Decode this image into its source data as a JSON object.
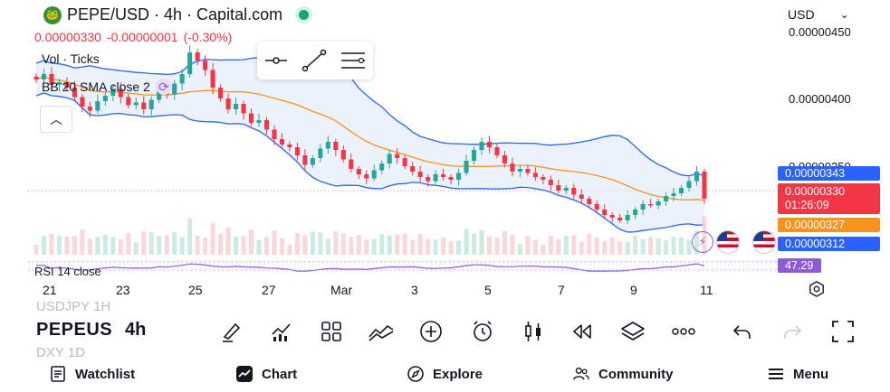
{
  "header": {
    "logo_text": "🐸",
    "title": "PEPE/USD · 4h · Capital.com"
  },
  "quote": {
    "last": "0.00000330",
    "change": "-0.00000001",
    "change_pct": "(-0.30%)"
  },
  "currency": {
    "selected": "USD"
  },
  "legend": {
    "volume": "Vol · Ticks",
    "bollinger": "BB 20 SMA close 2",
    "rsi": "RSI 14 close"
  },
  "price_axis": {
    "top_partial": "0.00000450",
    "mid": "0.00000400",
    "low_partial": "0.00000350"
  },
  "price_tags": {
    "bb_upper": "0.00000343",
    "last_price": "0.00000330",
    "countdown": "01:26:09",
    "bb_basis": "0.00000327",
    "bb_lower": "0.00000312",
    "rsi": "47.29"
  },
  "time_axis": [
    "21",
    "23",
    "25",
    "27",
    "Mar",
    "3",
    "5",
    "7",
    "9",
    "11"
  ],
  "bottom_bar": {
    "symbol": "PEPEUS",
    "timeframe": "4h",
    "ghost_above": "USDJPY  1H",
    "ghost_below": "DXY      1D"
  },
  "nav": [
    {
      "label": "Watchlist",
      "icon": "watchlist-icon"
    },
    {
      "label": "Chart",
      "icon": "chart-icon"
    },
    {
      "label": "Explore",
      "icon": "compass-icon"
    },
    {
      "label": "Community",
      "icon": "community-icon"
    },
    {
      "label": "Menu",
      "icon": "menu-icon"
    }
  ],
  "colors": {
    "up": "#26a69a",
    "down": "#f23645",
    "band": "#2962ff",
    "basis": "#f7931a",
    "rsi": "#8e5ad8"
  },
  "chart_data": {
    "type": "candlestick",
    "symbol": "PEPE/USD",
    "interval": "4h",
    "ylim": [
      2.9e-06,
      4.6e-06
    ],
    "close_series": [
      4.18e-06,
      4.22e-06,
      4.14e-06,
      4.16e-06,
      4.12e-06,
      4.05e-06,
      3.98e-06,
      3.95e-06,
      4.02e-06,
      4.06e-06,
      4.11e-06,
      4.05e-06,
      3.99e-06,
      4.01e-06,
      3.96e-06,
      4.03e-06,
      4.1e-06,
      4.07e-06,
      4.15e-06,
      4.22e-06,
      4.38e-06,
      4.32e-06,
      4.25e-06,
      4.12e-06,
      4.04e-06,
      3.96e-06,
      4e-06,
      3.93e-06,
      3.86e-06,
      3.88e-06,
      3.81e-06,
      3.74e-06,
      3.7e-06,
      3.68e-06,
      3.62e-06,
      3.55e-06,
      3.6e-06,
      3.67e-06,
      3.72e-06,
      3.66e-06,
      3.59e-06,
      3.52e-06,
      3.48e-06,
      3.45e-06,
      3.51e-06,
      3.56e-06,
      3.63e-06,
      3.6e-06,
      3.54e-06,
      3.5e-06,
      3.46e-06,
      3.43e-06,
      3.48e-06,
      3.46e-06,
      3.44e-06,
      3.49e-06,
      3.58e-06,
      3.66e-06,
      3.72e-06,
      3.68e-06,
      3.62e-06,
      3.56e-06,
      3.5e-06,
      3.52e-06,
      3.49e-06,
      3.46e-06,
      3.44e-06,
      3.4e-06,
      3.36e-06,
      3.38e-06,
      3.33e-06,
      3.3e-06,
      3.26e-06,
      3.22e-06,
      3.18e-06,
      3.16e-06,
      3.14e-06,
      3.18e-06,
      3.22e-06,
      3.26e-06,
      3.25e-06,
      3.28e-06,
      3.32e-06,
      3.34e-06,
      3.38e-06,
      3.43e-06,
      3.5e-06,
      3.3e-06
    ]
  }
}
